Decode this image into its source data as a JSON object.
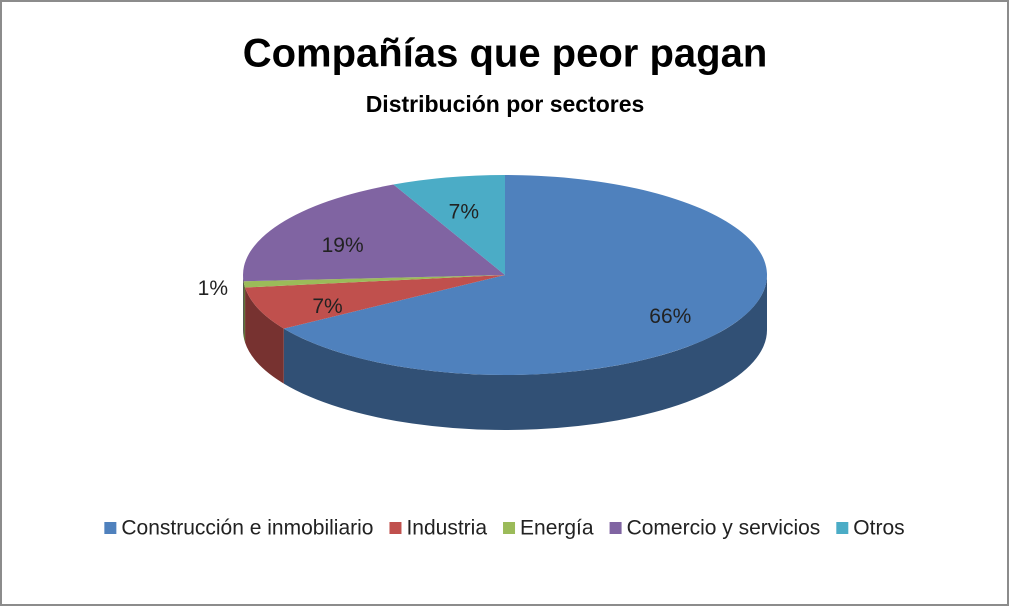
{
  "chart_data": {
    "type": "pie3d",
    "title": "Compañías que peor pagan",
    "subtitle": "Distribución por sectores",
    "categories": [
      "Construcción e inmobiliario",
      "Industria",
      "Energía",
      "Comercio y servicios",
      "Otros"
    ],
    "values": [
      66,
      7,
      1,
      19,
      7
    ],
    "value_labels": [
      "66%",
      "7%",
      "1%",
      "19%",
      "7%"
    ],
    "colors": [
      "#4f81bd",
      "#c0504d",
      "#9bbb59",
      "#8064a2",
      "#4bacc6"
    ],
    "legend": "bottom"
  }
}
